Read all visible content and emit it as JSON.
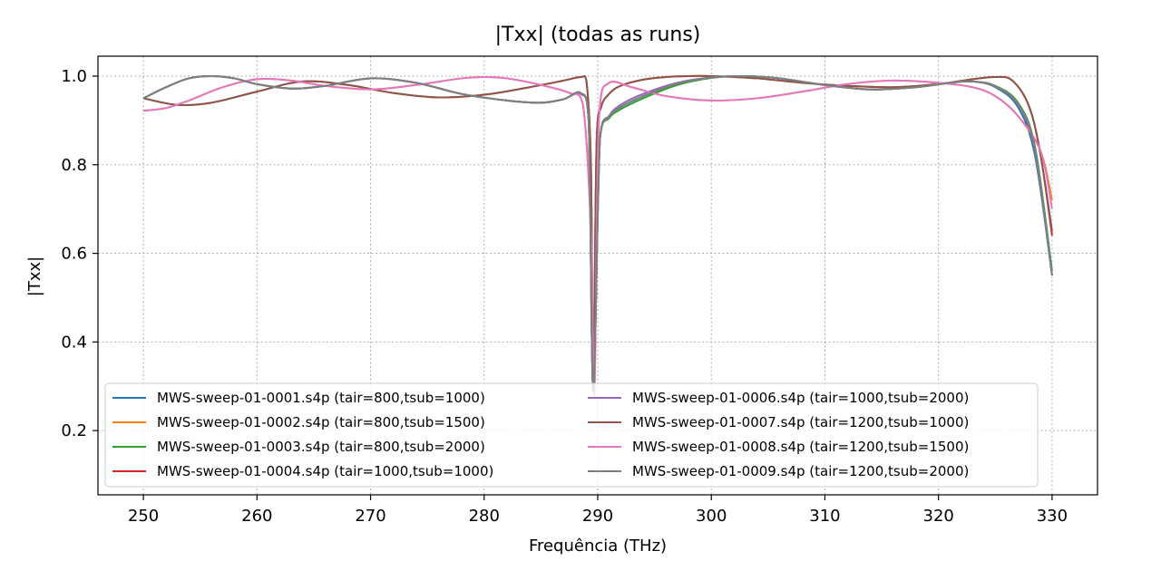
{
  "chart_data": {
    "type": "line",
    "title": "|Txx| (todas as runs)",
    "xlabel": "Frequência (THz)",
    "ylabel": "|Txx|",
    "xlim": [
      246,
      334
    ],
    "ylim": [
      0.055,
      1.045
    ],
    "xticks": [
      250,
      260,
      270,
      280,
      290,
      300,
      310,
      320,
      330
    ],
    "yticks": [
      0.2,
      0.4,
      0.6,
      0.8,
      1.0
    ],
    "xtick_labels": [
      "250",
      "260",
      "270",
      "280",
      "290",
      "300",
      "310",
      "320",
      "330"
    ],
    "ytick_labels": [
      "0.2",
      "0.4",
      "0.6",
      "0.8",
      "1.0"
    ],
    "grid": true,
    "legend": {
      "location": "lower-left",
      "columns": 2
    },
    "series": [
      {
        "name": "MWS-sweep-01-0001.s4p (tair=800,tsub=1000)",
        "color": "#1f77b4",
        "x": [
          250,
          252,
          254,
          256,
          258,
          260,
          263,
          266,
          270,
          274,
          278,
          282,
          285,
          287,
          288.5,
          289.2,
          289.6,
          290.2,
          291,
          292,
          294,
          297,
          300,
          303,
          306,
          310,
          314,
          318,
          321,
          323,
          325,
          327,
          328.5,
          330
        ],
        "y": [
          0.95,
          0.975,
          0.995,
          1.0,
          0.995,
          0.982,
          0.972,
          0.978,
          0.995,
          0.985,
          0.96,
          0.945,
          0.94,
          0.948,
          0.96,
          0.9,
          0.29,
          0.86,
          0.91,
          0.93,
          0.955,
          0.983,
          0.997,
          1.0,
          0.995,
          0.98,
          0.97,
          0.975,
          0.985,
          0.988,
          0.975,
          0.93,
          0.82,
          0.55
        ]
      },
      {
        "name": "MWS-sweep-01-0002.s4p (tair=800,tsub=1500)",
        "color": "#ff7f0e",
        "x": [
          250,
          252,
          254,
          257,
          260,
          263,
          266,
          270,
          274,
          278,
          280,
          282,
          285,
          287.5,
          288.7,
          289.4,
          289.7,
          290.1,
          291,
          293,
          296,
          300,
          304,
          308,
          312,
          316,
          320,
          323,
          325,
          327,
          329,
          330
        ],
        "y": [
          0.922,
          0.928,
          0.945,
          0.975,
          0.993,
          0.99,
          0.978,
          0.97,
          0.98,
          0.995,
          0.998,
          0.995,
          0.98,
          0.962,
          0.935,
          0.65,
          0.28,
          0.9,
          0.985,
          0.975,
          0.955,
          0.945,
          0.95,
          0.965,
          0.982,
          0.99,
          0.985,
          0.975,
          0.955,
          0.91,
          0.83,
          0.72
        ]
      },
      {
        "name": "MWS-sweep-01-0003.s4p (tair=800,tsub=2000)",
        "color": "#2ca02c",
        "x": [
          250,
          252,
          254,
          256,
          258,
          260,
          263,
          266,
          270,
          274,
          278,
          282,
          285,
          287,
          288.5,
          289.2,
          289.6,
          290.2,
          291,
          292,
          294,
          297,
          300,
          303,
          306,
          310,
          314,
          318,
          321,
          323,
          325,
          327,
          328.5,
          330
        ],
        "y": [
          0.95,
          0.975,
          0.995,
          1.0,
          0.995,
          0.982,
          0.972,
          0.978,
          0.995,
          0.985,
          0.96,
          0.945,
          0.94,
          0.948,
          0.962,
          0.9,
          0.29,
          0.86,
          0.905,
          0.925,
          0.95,
          0.98,
          0.996,
          1.0,
          0.995,
          0.98,
          0.97,
          0.975,
          0.985,
          0.988,
          0.978,
          0.94,
          0.84,
          0.56
        ]
      },
      {
        "name": "MWS-sweep-01-0004.s4p (tair=1000,tsub=1000)",
        "color": "#d62728",
        "x": [
          250,
          253,
          256,
          260,
          264,
          268,
          272,
          276,
          280,
          284,
          287,
          288.5,
          289.0,
          289.4,
          289.6,
          289.9,
          290.3,
          291,
          292,
          294,
          296,
          298,
          300,
          304,
          308,
          312,
          316,
          320,
          323,
          325,
          326.5,
          328,
          329,
          330
        ],
        "y": [
          0.95,
          0.935,
          0.94,
          0.965,
          0.988,
          0.98,
          0.962,
          0.952,
          0.958,
          0.975,
          0.99,
          0.998,
          0.99,
          0.8,
          0.3,
          0.85,
          0.93,
          0.96,
          0.978,
          0.992,
          0.998,
          1.0,
          1.0,
          0.995,
          0.985,
          0.978,
          0.975,
          0.982,
          0.993,
          0.998,
          0.99,
          0.93,
          0.82,
          0.64
        ]
      },
      {
        "name": "MWS-sweep-01-0006.s4p (tair=1000,tsub=2000)",
        "color": "#9467bd",
        "x": [
          250,
          252,
          254,
          256,
          258,
          260,
          263,
          266,
          270,
          274,
          278,
          282,
          285,
          287,
          288.5,
          289.2,
          289.6,
          290.2,
          291,
          292,
          294,
          297,
          300,
          303,
          306,
          310,
          314,
          318,
          321,
          323,
          325,
          327,
          328.5,
          330
        ],
        "y": [
          0.95,
          0.975,
          0.995,
          1.0,
          0.995,
          0.982,
          0.972,
          0.978,
          0.995,
          0.985,
          0.96,
          0.945,
          0.94,
          0.948,
          0.96,
          0.9,
          0.29,
          0.86,
          0.91,
          0.935,
          0.96,
          0.985,
          0.997,
          1.0,
          0.995,
          0.98,
          0.97,
          0.975,
          0.985,
          0.988,
          0.976,
          0.935,
          0.83,
          0.55
        ]
      },
      {
        "name": "MWS-sweep-01-0007.s4p (tair=1200,tsub=1000)",
        "color": "#8c564b",
        "x": [
          250,
          253,
          256,
          260,
          264,
          268,
          272,
          276,
          280,
          284,
          287,
          288.5,
          289.0,
          289.4,
          289.6,
          289.9,
          290.3,
          291,
          292,
          294,
          296,
          298,
          300,
          304,
          308,
          312,
          316,
          320,
          323,
          325,
          326.5,
          328,
          329,
          330
        ],
        "y": [
          0.95,
          0.935,
          0.94,
          0.965,
          0.988,
          0.98,
          0.962,
          0.952,
          0.958,
          0.975,
          0.99,
          0.998,
          0.99,
          0.8,
          0.3,
          0.85,
          0.93,
          0.96,
          0.978,
          0.992,
          0.998,
          1.0,
          1.0,
          0.995,
          0.985,
          0.978,
          0.975,
          0.982,
          0.993,
          0.998,
          0.99,
          0.93,
          0.82,
          0.65
        ]
      },
      {
        "name": "MWS-sweep-01-0008.s4p (tair=1200,tsub=1500)",
        "color": "#e377c2",
        "x": [
          250,
          252,
          254,
          257,
          260,
          263,
          266,
          270,
          274,
          278,
          280,
          282,
          285,
          287.5,
          288.7,
          289.4,
          289.7,
          290.1,
          291,
          293,
          296,
          300,
          304,
          308,
          312,
          316,
          320,
          323,
          325,
          327,
          329,
          330
        ],
        "y": [
          0.922,
          0.928,
          0.945,
          0.975,
          0.993,
          0.99,
          0.978,
          0.97,
          0.98,
          0.995,
          0.998,
          0.995,
          0.98,
          0.962,
          0.935,
          0.65,
          0.28,
          0.9,
          0.985,
          0.975,
          0.955,
          0.945,
          0.95,
          0.965,
          0.982,
          0.99,
          0.985,
          0.975,
          0.955,
          0.91,
          0.83,
          0.7
        ]
      },
      {
        "name": "MWS-sweep-01-0009.s4p (tair=1200,tsub=2000)",
        "color": "#7f7f7f",
        "x": [
          250,
          252,
          254,
          256,
          258,
          260,
          263,
          266,
          270,
          274,
          278,
          282,
          285,
          287,
          288.5,
          289.2,
          289.6,
          290.2,
          291,
          292,
          294,
          297,
          300,
          303,
          306,
          310,
          314,
          318,
          321,
          323,
          325,
          327,
          328.5,
          330
        ],
        "y": [
          0.95,
          0.975,
          0.995,
          1.0,
          0.995,
          0.982,
          0.972,
          0.978,
          0.995,
          0.985,
          0.96,
          0.945,
          0.94,
          0.948,
          0.962,
          0.9,
          0.29,
          0.86,
          0.908,
          0.93,
          0.955,
          0.983,
          0.997,
          1.0,
          0.995,
          0.98,
          0.97,
          0.975,
          0.985,
          0.988,
          0.977,
          0.937,
          0.835,
          0.55
        ]
      }
    ]
  }
}
